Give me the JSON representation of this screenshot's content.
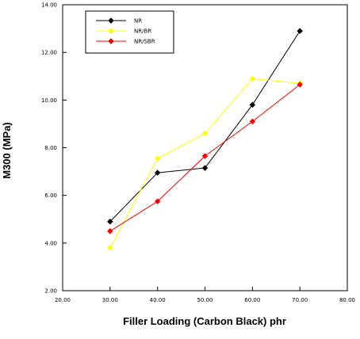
{
  "chart_data": {
    "type": "line",
    "title": "",
    "xlabel": "Filler Loading (Carbon Black) phr",
    "ylabel": "M300  (MPa)",
    "xlim": [
      20,
      80
    ],
    "ylim": [
      2,
      14
    ],
    "x_ticks": [
      20,
      30,
      40,
      50,
      60,
      70,
      80
    ],
    "y_ticks": [
      2,
      4,
      6,
      8,
      10,
      12,
      14
    ],
    "x_tick_labels": [
      "20.00",
      "30.00",
      "40.00",
      "50.00",
      "60.00",
      "70.00",
      "80.00"
    ],
    "y_tick_labels": [
      "2.00",
      "4.00",
      "6.00",
      "8.00",
      "10.00",
      "12.00",
      "14.00"
    ],
    "grid": false,
    "legend_position": "top-left",
    "series": [
      {
        "name": "NR",
        "color": "#000000",
        "marker": "diamond",
        "x": [
          30,
          40,
          50,
          60,
          70
        ],
        "y": [
          4.9,
          6.95,
          7.15,
          9.8,
          12.9
        ]
      },
      {
        "name": "NR/BR",
        "color": "#ffff00",
        "marker": "diamond",
        "x": [
          30,
          40,
          50,
          60,
          70
        ],
        "y": [
          3.8,
          7.55,
          8.6,
          10.9,
          10.7
        ]
      },
      {
        "name": "NR/SBR",
        "color": "#ff0000",
        "marker": "diamond",
        "x": [
          30,
          40,
          50,
          60,
          70
        ],
        "y": [
          4.5,
          5.75,
          7.65,
          9.1,
          10.65
        ]
      }
    ]
  }
}
